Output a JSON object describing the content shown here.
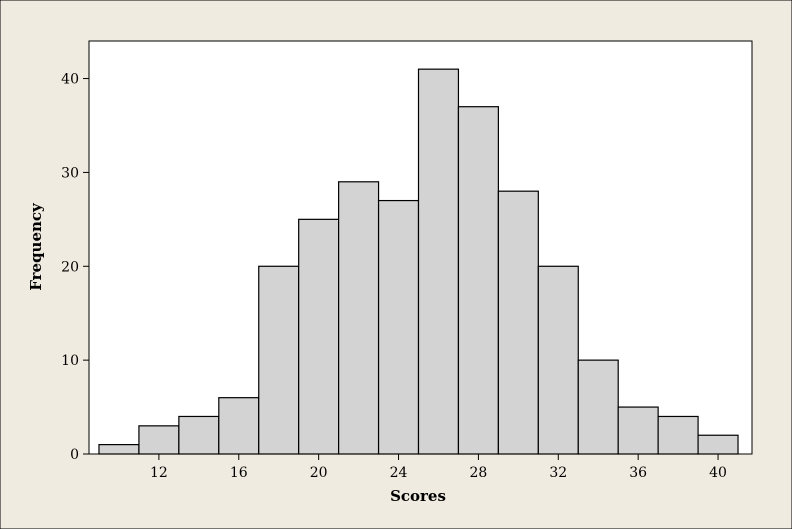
{
  "chart_data": {
    "type": "bar",
    "title": "",
    "xlabel": "Scores",
    "ylabel": "Frequency",
    "bin_edges": [
      9,
      11,
      13,
      15,
      17,
      19,
      21,
      23,
      25,
      27,
      29,
      31,
      33,
      35,
      37,
      39,
      41
    ],
    "values": [
      1,
      3,
      4,
      6,
      20,
      25,
      29,
      27,
      41,
      37,
      28,
      20,
      10,
      5,
      4,
      2
    ],
    "xlim": [
      8.5,
      41.7
    ],
    "ylim": [
      0,
      44
    ],
    "xticks": [
      12,
      16,
      20,
      24,
      28,
      32,
      36,
      40
    ],
    "yticks": [
      0,
      10,
      20,
      30,
      40
    ],
    "grid": false,
    "legend": "none",
    "colors": {
      "outer_background": "#f0ebe0",
      "plot_background": "#ffffff",
      "bar_fill": "#d3d3d3",
      "bar_stroke": "#000000"
    }
  }
}
